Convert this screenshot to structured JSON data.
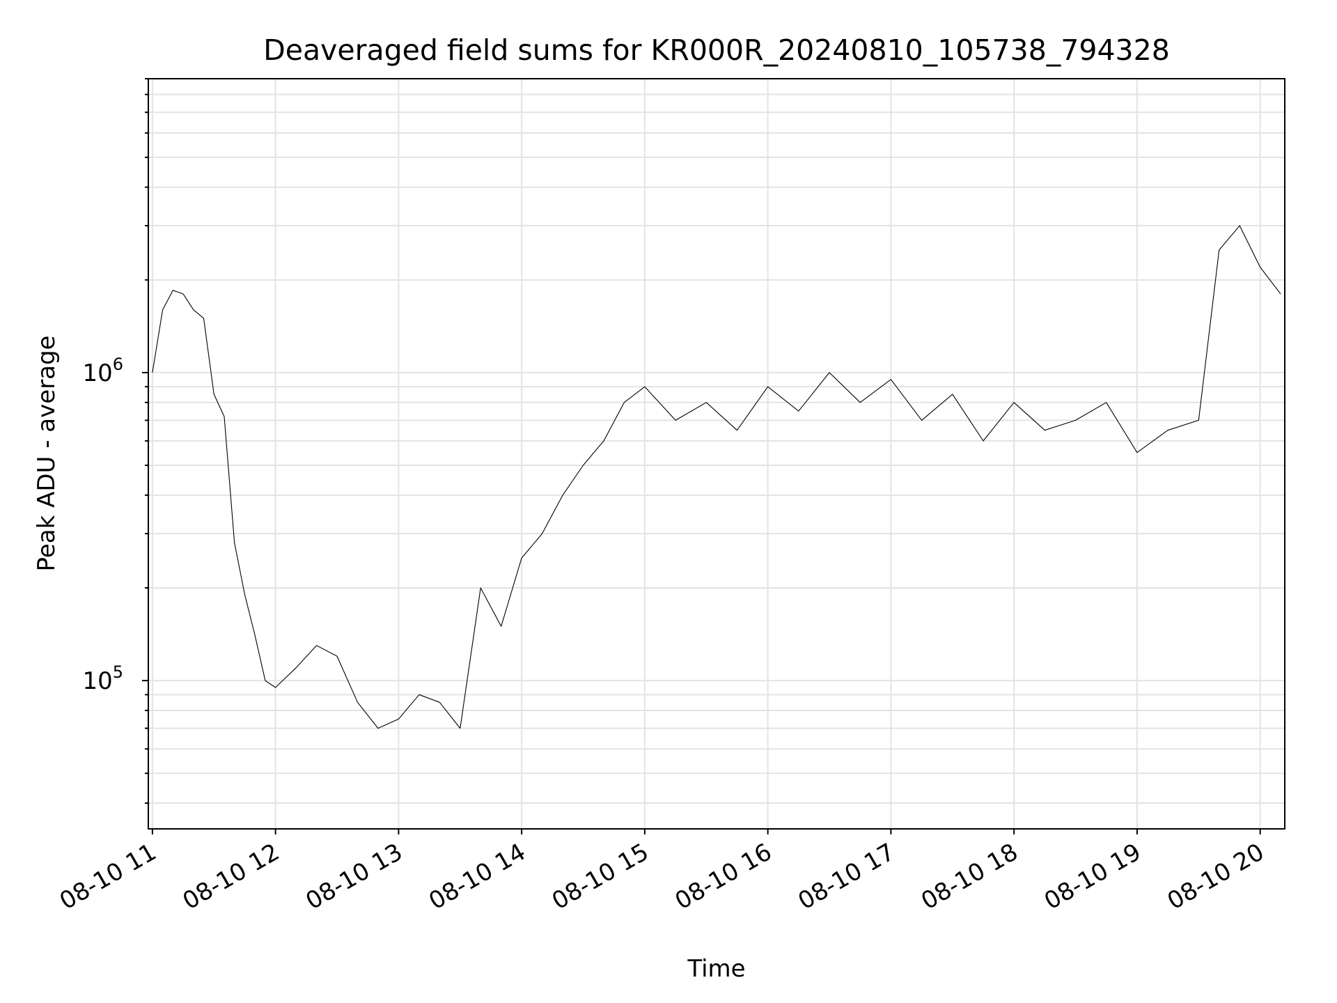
{
  "chart_data": {
    "type": "line",
    "title": "Deaveraged field sums for KR000R_20240810_105738_794328",
    "xlabel": "Time",
    "ylabel": "Peak ADU - average",
    "yscale": "log",
    "grid": true,
    "grid_minor": true,
    "line_color": "#000000",
    "grid_color": "#e3e3e3",
    "xlim": [
      "08-10 10:58",
      "08-10 20:12"
    ],
    "ylim": [
      33000,
      9000000
    ],
    "x_ticks": [
      "08-10 11",
      "08-10 12",
      "08-10 13",
      "08-10 14",
      "08-10 15",
      "08-10 16",
      "08-10 17",
      "08-10 18",
      "08-10 19",
      "08-10 20"
    ],
    "y_ticks": [
      {
        "base": "10",
        "exp": "5",
        "value": 100000
      },
      {
        "base": "10",
        "exp": "6",
        "value": 1000000
      }
    ],
    "series": [
      {
        "x": [
          "08-10 11:00",
          "08-10 11:05",
          "08-10 11:10",
          "08-10 11:15",
          "08-10 11:20",
          "08-10 11:25",
          "08-10 11:30",
          "08-10 11:35",
          "08-10 11:40",
          "08-10 11:45",
          "08-10 11:50",
          "08-10 11:55",
          "08-10 12:00",
          "08-10 12:10",
          "08-10 12:20",
          "08-10 12:30",
          "08-10 12:40",
          "08-10 12:50",
          "08-10 13:00",
          "08-10 13:10",
          "08-10 13:20",
          "08-10 13:30",
          "08-10 13:40",
          "08-10 13:50",
          "08-10 14:00",
          "08-10 14:10",
          "08-10 14:20",
          "08-10 14:30",
          "08-10 14:40",
          "08-10 14:50",
          "08-10 15:00",
          "08-10 15:15",
          "08-10 15:30",
          "08-10 15:45",
          "08-10 16:00",
          "08-10 16:15",
          "08-10 16:30",
          "08-10 16:45",
          "08-10 17:00",
          "08-10 17:15",
          "08-10 17:30",
          "08-10 17:45",
          "08-10 18:00",
          "08-10 18:15",
          "08-10 18:30",
          "08-10 18:45",
          "08-10 19:00",
          "08-10 19:15",
          "08-10 19:30",
          "08-10 19:40",
          "08-10 19:50",
          "08-10 20:00",
          "08-10 20:10"
        ],
        "y": [
          1000000,
          1600000,
          1850000,
          1800000,
          1600000,
          1500000,
          850000,
          720000,
          280000,
          190000,
          140000,
          100000,
          95000,
          110000,
          130000,
          120000,
          85000,
          70000,
          75000,
          90000,
          85000,
          70000,
          200000,
          150000,
          250000,
          300000,
          400000,
          500000,
          600000,
          800000,
          900000,
          700000,
          800000,
          650000,
          900000,
          750000,
          1000000,
          800000,
          950000,
          700000,
          850000,
          600000,
          800000,
          650000,
          700000,
          800000,
          550000,
          650000,
          700000,
          2500000,
          3000000,
          2200000,
          1800000
        ]
      }
    ]
  }
}
